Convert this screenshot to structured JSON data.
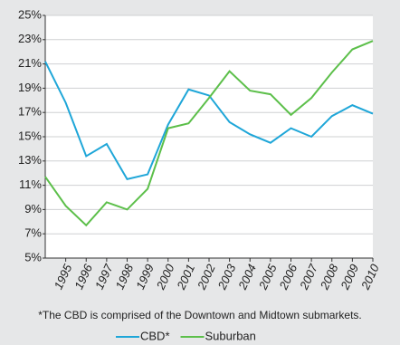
{
  "chart_data": {
    "type": "line",
    "categories": [
      null,
      "1995",
      "1996",
      "1997",
      "1998",
      "1999",
      "2000",
      "2001",
      "2002",
      "2003",
      "2004",
      "2005",
      "2006",
      "2007",
      "2008",
      "2009",
      "2010"
    ],
    "series": [
      {
        "name": "CBD*",
        "color": "#1ea6d8",
        "values": [
          21.2,
          17.8,
          13.4,
          14.4,
          11.5,
          11.9,
          16.0,
          18.9,
          18.4,
          16.2,
          15.2,
          14.5,
          15.7,
          15.0,
          16.7,
          17.6,
          16.9
        ]
      },
      {
        "name": "Suburban",
        "color": "#5cbf4a",
        "values": [
          11.7,
          9.3,
          7.7,
          9.6,
          9.0,
          10.7,
          15.7,
          16.1,
          18.2,
          20.4,
          18.8,
          18.5,
          16.8,
          18.2,
          20.3,
          22.2,
          22.9
        ]
      }
    ],
    "ylim": [
      5,
      25
    ],
    "yticks": [
      {
        "value": 5,
        "label": "5%"
      },
      {
        "value": 7,
        "label": "7%"
      },
      {
        "value": 9,
        "label": "9%"
      },
      {
        "value": 11,
        "label": "11%"
      },
      {
        "value": 13,
        "label": "13%"
      },
      {
        "value": 15,
        "label": "15%"
      },
      {
        "value": 17,
        "label": "17%"
      },
      {
        "value": 19,
        "label": "19%"
      },
      {
        "value": 21,
        "label": "21%"
      },
      {
        "value": 23,
        "label": "23%"
      },
      {
        "value": 25,
        "label": "25%"
      }
    ],
    "grid": true,
    "annotation": "*The CBD is comprised of the Downtown and Midtown submarkets."
  }
}
